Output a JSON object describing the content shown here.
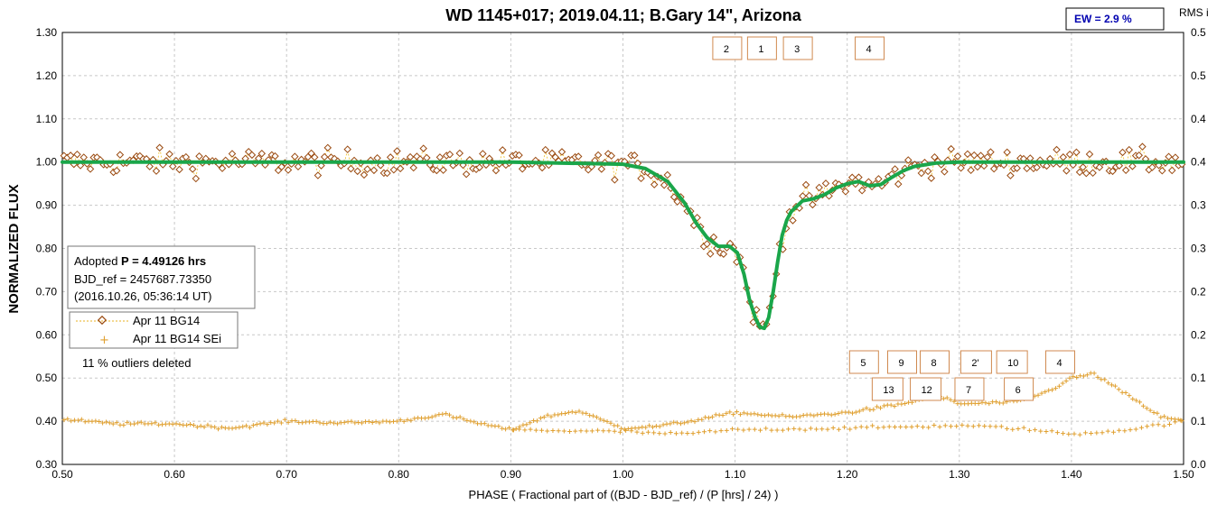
{
  "chart_data": {
    "type": "scatter",
    "title": "WD 1145+017; 2019.04.11; B.Gary 14\", Arizona",
    "xlabel": "PHASE ( Fractional part of ((BJD - BJD_ref) / (P [hrs] / 24) )",
    "ylabel": "NORMALIZED FLUX",
    "y2label": "RMS i",
    "xlim": [
      0.5,
      1.5
    ],
    "ylim": [
      0.3,
      1.3
    ],
    "y2lim": [
      0.0,
      0.5
    ],
    "x_ticks": [
      "0.50",
      "0.60",
      "0.70",
      "0.80",
      "0.90",
      "1.00",
      "1.10",
      "1.20",
      "1.30",
      "1.40",
      "1.50"
    ],
    "y_ticks": [
      "0.30",
      "0.40",
      "0.50",
      "0.60",
      "0.70",
      "0.80",
      "0.90",
      "1.00",
      "1.10",
      "1.20",
      "1.30"
    ],
    "y2_ticks": [
      "0.0",
      "0.1",
      "0.1",
      "0.2",
      "0.2",
      "0.3",
      "0.3",
      "0.4",
      "0.4",
      "0.5",
      "0.5"
    ],
    "grid": true,
    "reference_line": 1.0,
    "ew_label": "EW =  2.9 %",
    "info": {
      "line1_prefix": "Adopted ",
      "line1_bold": "P = 4.49126 hrs",
      "line2": "BJD_ref = 2457687.73350",
      "line3": "(2016.10.26, 05:36:14 UT)"
    },
    "outliers_note": "11 % outliers deleted",
    "legend": [
      {
        "name": "Apr 11 BG14",
        "marker": "diamond"
      },
      {
        "name": "Apr 11 BG14 SEi",
        "marker": "plus"
      }
    ],
    "dip_labels_top": [
      {
        "label": "2",
        "x": 1.093
      },
      {
        "label": "1",
        "x": 1.124
      },
      {
        "label": "3",
        "x": 1.156
      },
      {
        "label": "4",
        "x": 1.22
      }
    ],
    "dip_labels_bottom_row1": [
      {
        "label": "5",
        "x": 1.215
      },
      {
        "label": "9",
        "x": 1.249
      },
      {
        "label": "8",
        "x": 1.278
      },
      {
        "label": "2'",
        "x": 1.315
      },
      {
        "label": "10",
        "x": 1.347
      },
      {
        "label": "4",
        "x": 1.39
      }
    ],
    "dip_labels_bottom_row2": [
      {
        "label": "13",
        "x": 1.236
      },
      {
        "label": "12",
        "x": 1.27
      },
      {
        "label": "7",
        "x": 1.309
      },
      {
        "label": "6",
        "x": 1.353
      }
    ],
    "model_curve": {
      "color": "#1aa64a",
      "x": [
        0.5,
        0.9,
        1.0,
        1.02,
        1.04,
        1.055,
        1.065,
        1.075,
        1.085,
        1.095,
        1.102,
        1.108,
        1.113,
        1.118,
        1.122,
        1.126,
        1.13,
        1.134,
        1.138,
        1.142,
        1.146,
        1.15,
        1.16,
        1.17,
        1.18,
        1.19,
        1.2,
        1.21,
        1.22,
        1.23,
        1.24,
        1.25,
        1.26,
        1.28,
        1.3,
        1.5
      ],
      "y": [
        1.0,
        1.0,
        0.995,
        0.985,
        0.955,
        0.905,
        0.86,
        0.825,
        0.805,
        0.805,
        0.79,
        0.74,
        0.68,
        0.64,
        0.618,
        0.615,
        0.64,
        0.7,
        0.77,
        0.83,
        0.865,
        0.885,
        0.91,
        0.915,
        0.925,
        0.94,
        0.95,
        0.955,
        0.945,
        0.948,
        0.965,
        0.98,
        0.99,
        0.998,
        1.0,
        1.0
      ]
    },
    "rms_series": {
      "name": "Apr 11 BG14 SEi",
      "axis": "right",
      "x": [
        0.5,
        0.55,
        0.6,
        0.65,
        0.7,
        0.75,
        0.8,
        0.84,
        0.87,
        0.9,
        0.93,
        0.96,
        0.98,
        1.0,
        1.03,
        1.06,
        1.1,
        1.15,
        1.2,
        1.25,
        1.28,
        1.3,
        1.35,
        1.38,
        1.4,
        1.42,
        1.45,
        1.48,
        1.5
      ],
      "y": [
        0.052,
        0.047,
        0.047,
        0.042,
        0.05,
        0.048,
        0.05,
        0.058,
        0.048,
        0.04,
        0.055,
        0.062,
        0.052,
        0.042,
        0.044,
        0.05,
        0.06,
        0.055,
        0.06,
        0.07,
        0.08,
        0.07,
        0.072,
        0.085,
        0.1,
        0.105,
        0.08,
        0.055,
        0.05
      ]
    },
    "rms_series_lower": {
      "axis": "right",
      "x": [
        0.9,
        1.0,
        1.05,
        1.1,
        1.2,
        1.3,
        1.35,
        1.4,
        1.45,
        1.5
      ],
      "y": [
        0.04,
        0.038,
        0.035,
        0.04,
        0.042,
        0.045,
        0.042,
        0.035,
        0.04,
        0.05
      ]
    }
  }
}
